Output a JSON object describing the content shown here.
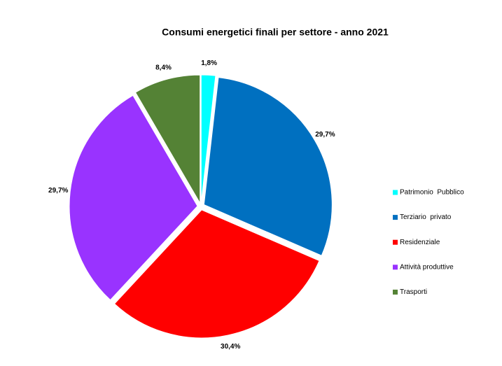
{
  "chart_data": {
    "type": "pie",
    "title": "Consumi energetici finali per settore - anno 2021",
    "categories": [
      "Patrimonio  Pubblico",
      "Terziario  privato",
      "Residenziale",
      "Attività produttive",
      "Trasporti"
    ],
    "values": [
      1.8,
      29.7,
      30.4,
      29.7,
      8.4
    ],
    "value_labels": [
      "1,8%",
      "29,7%",
      "30,4%",
      "29,7%",
      "8,4%"
    ],
    "colors": [
      "#00ffff",
      "#0070c0",
      "#ff0000",
      "#9933ff",
      "#548235"
    ],
    "legend": "right"
  }
}
